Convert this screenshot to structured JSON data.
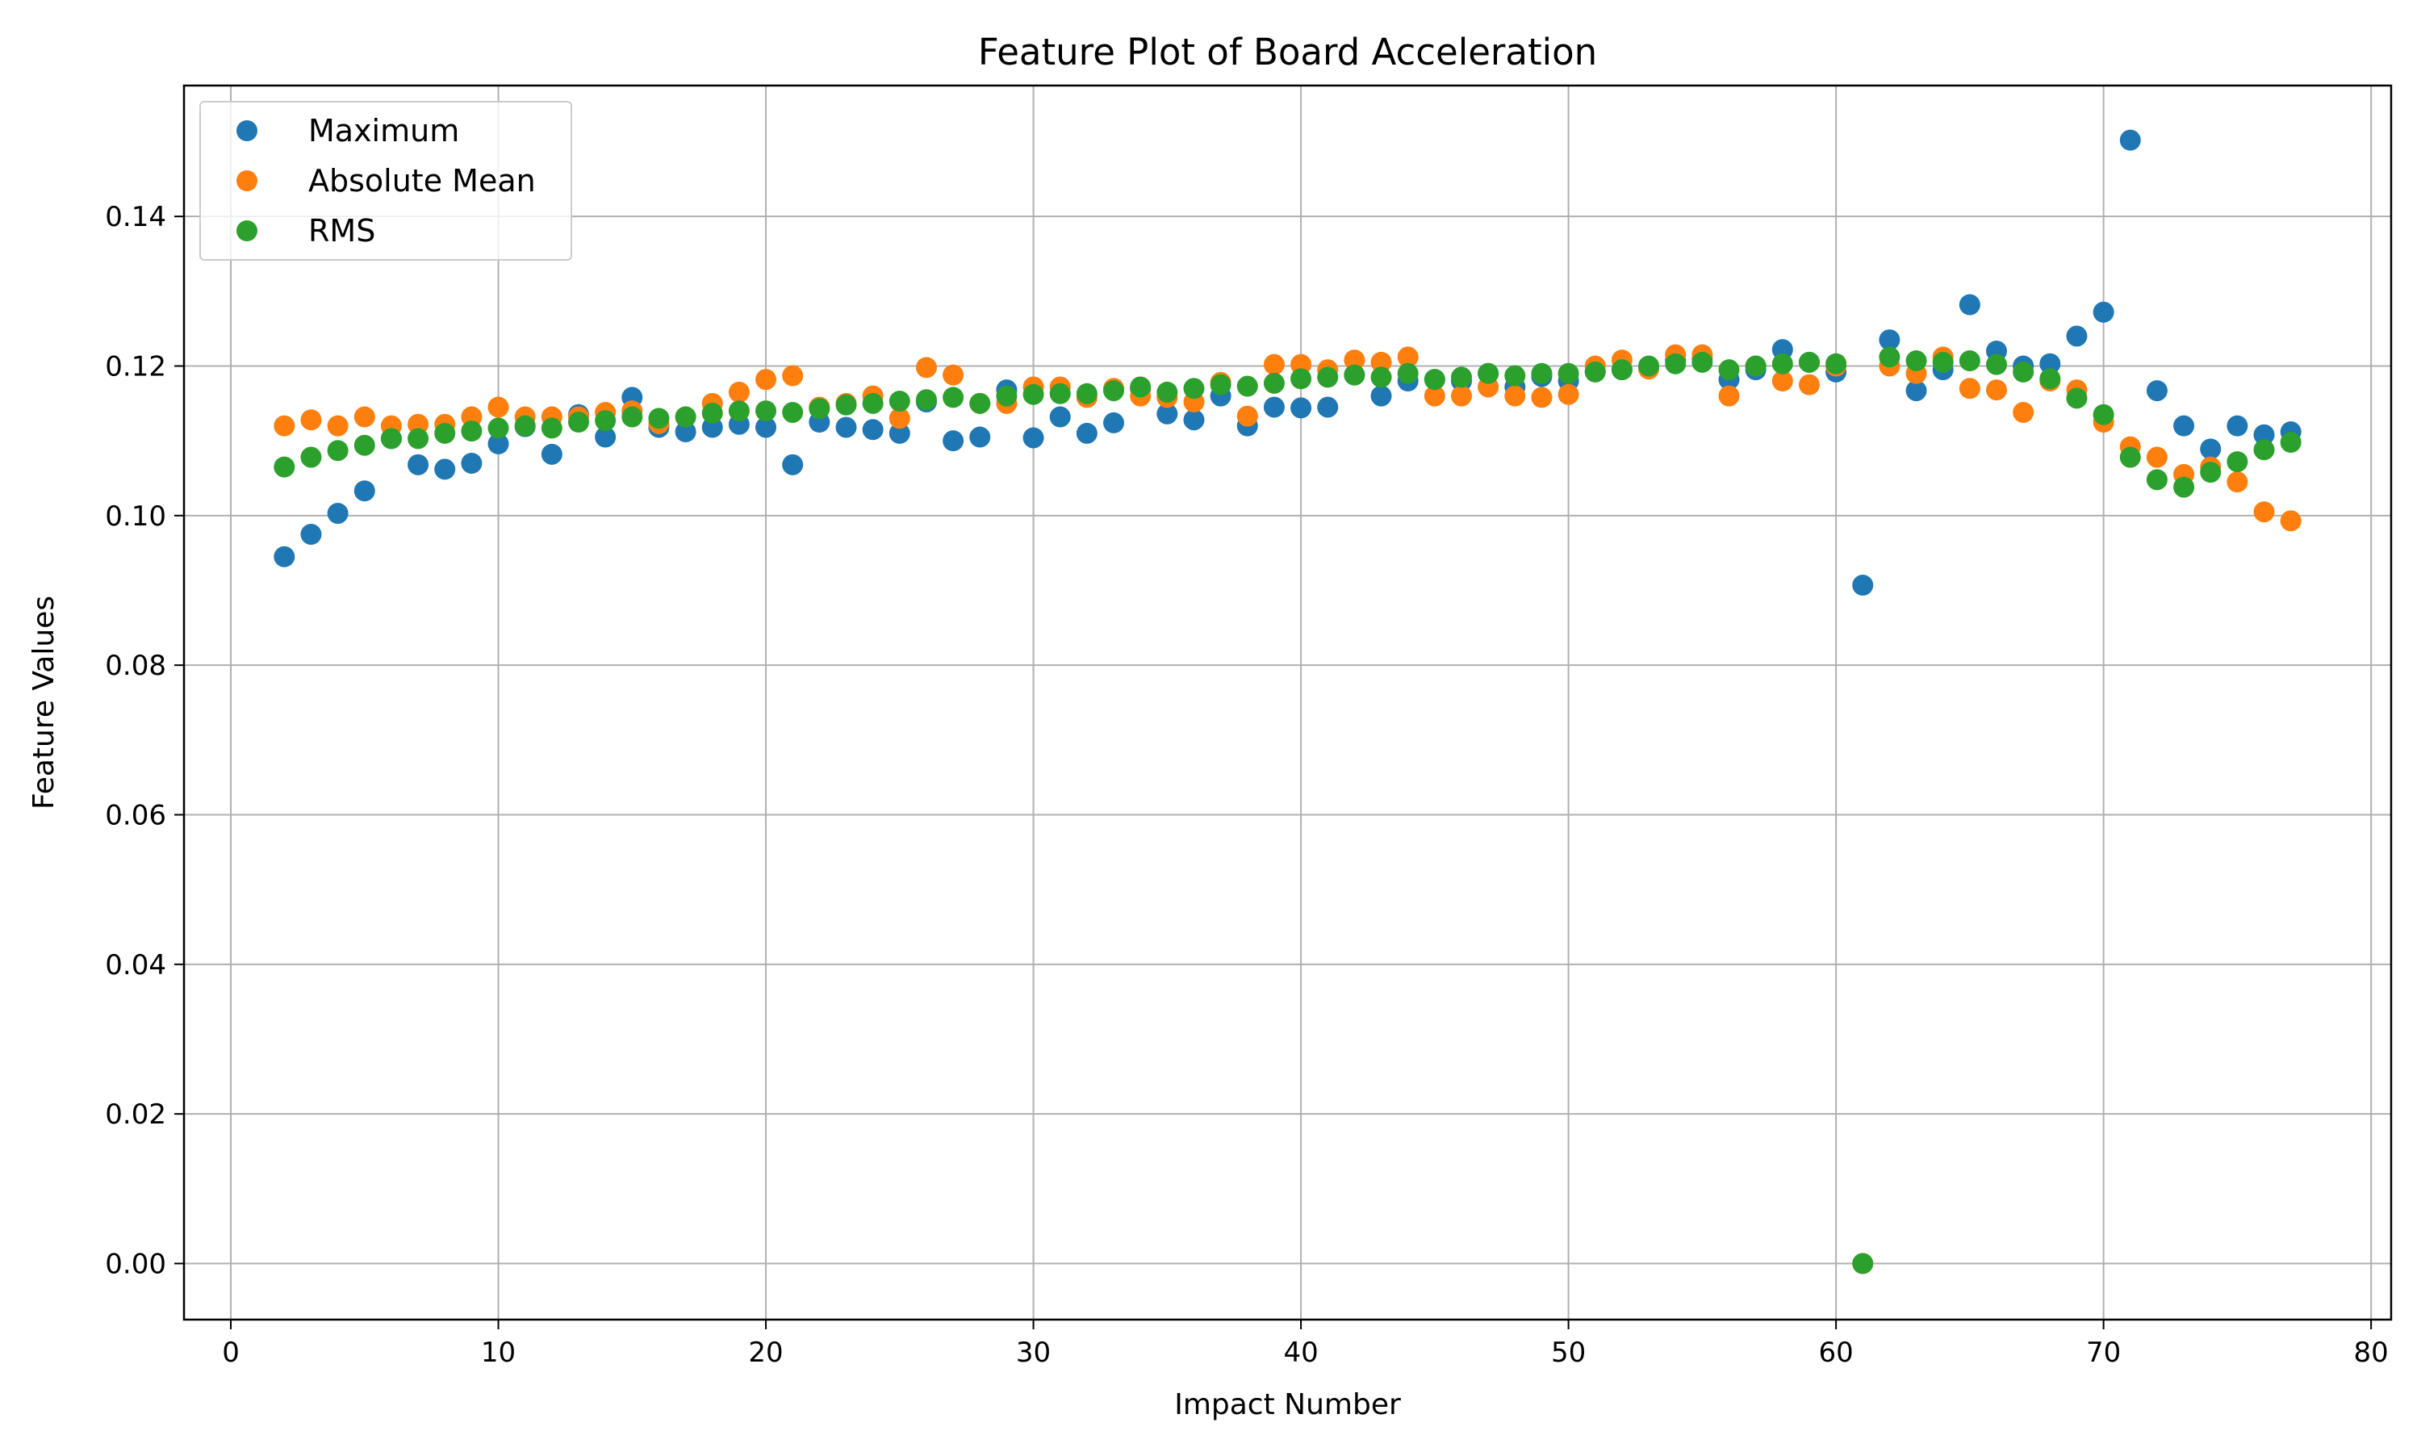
{
  "chart_data": {
    "type": "scatter",
    "title": "Feature Plot of Board Acceleration",
    "xlabel": "Impact Number",
    "ylabel": "Feature Values",
    "xlim": [
      -1.75,
      80.75
    ],
    "ylim": [
      -0.0075,
      0.1575
    ],
    "xticks": [
      0,
      10,
      20,
      30,
      40,
      50,
      60,
      70,
      80
    ],
    "yticks": [
      0.0,
      0.02,
      0.04,
      0.06,
      0.08,
      0.1,
      0.12,
      0.14
    ],
    "ytick_labels": [
      "0.00",
      "0.02",
      "0.04",
      "0.06",
      "0.08",
      "0.10",
      "0.12",
      "0.14"
    ],
    "grid": true,
    "legend_position": "top-left",
    "x": [
      2,
      3,
      4,
      5,
      6,
      7,
      8,
      9,
      10,
      11,
      12,
      13,
      14,
      15,
      16,
      17,
      18,
      19,
      20,
      21,
      22,
      23,
      24,
      25,
      26,
      27,
      28,
      29,
      30,
      31,
      32,
      33,
      34,
      35,
      36,
      37,
      38,
      39,
      40,
      41,
      42,
      43,
      44,
      45,
      46,
      47,
      48,
      49,
      50,
      51,
      52,
      53,
      54,
      55,
      56,
      57,
      58,
      59,
      60,
      61,
      62,
      63,
      64,
      65,
      66,
      67,
      68,
      69,
      70,
      71,
      72,
      73,
      74,
      75,
      76,
      77
    ],
    "series": [
      {
        "name": "Maximum",
        "color": "#1f77b4",
        "values": [
          0.0945,
          0.0975,
          0.1003,
          0.1033,
          0.1103,
          0.1068,
          0.1062,
          0.107,
          0.1096,
          0.1119,
          0.1082,
          0.1135,
          0.1105,
          0.1158,
          0.1118,
          0.1112,
          0.1118,
          0.1122,
          0.1118,
          0.1068,
          0.1125,
          0.1118,
          0.1115,
          0.111,
          0.1152,
          0.11,
          0.1105,
          0.1168,
          0.1104,
          0.1132,
          0.111,
          0.1124,
          0.117,
          0.1136,
          0.1128,
          0.116,
          0.112,
          0.1145,
          0.1144,
          0.1145,
          0.1188,
          0.116,
          0.118,
          0.1182,
          0.118,
          0.119,
          0.1172,
          0.1186,
          0.118,
          0.1193,
          0.1195,
          0.1198,
          0.1208,
          0.121,
          0.1182,
          0.1195,
          0.1222,
          0.1205,
          0.1192,
          0.0907,
          0.1235,
          0.1167,
          0.1195,
          0.1282,
          0.122,
          0.12,
          0.1203,
          0.124,
          0.1272,
          0.1502,
          0.1167,
          0.112,
          0.1089,
          0.112,
          0.1108,
          0.1112
        ]
      },
      {
        "name": "Absolute Mean",
        "color": "#ff7f0e",
        "values": [
          0.112,
          0.1128,
          0.112,
          0.1132,
          0.112,
          0.1122,
          0.1122,
          0.1132,
          0.1145,
          0.1132,
          0.1132,
          0.1132,
          0.1138,
          0.114,
          0.1123,
          0.1132,
          0.115,
          0.1165,
          0.1182,
          0.1187,
          0.1145,
          0.115,
          0.116,
          0.113,
          0.1198,
          0.1188,
          0.115,
          0.115,
          0.1172,
          0.1172,
          0.1158,
          0.117,
          0.116,
          0.1158,
          0.1152,
          0.1178,
          0.1133,
          0.1202,
          0.1202,
          0.1195,
          0.1208,
          0.1205,
          0.1212,
          0.116,
          0.116,
          0.1172,
          0.116,
          0.1158,
          0.1162,
          0.12,
          0.1208,
          0.1196,
          0.1215,
          0.1215,
          0.116,
          0.12,
          0.118,
          0.1175,
          0.12,
          0.0,
          0.12,
          0.119,
          0.1212,
          0.117,
          0.1168,
          0.1138,
          0.118,
          0.1168,
          0.1125,
          0.1092,
          0.1078,
          0.1055,
          0.1065,
          0.1045,
          0.1005,
          0.0993
        ]
      },
      {
        "name": "RMS",
        "color": "#2ca02c",
        "values": [
          0.1065,
          0.1078,
          0.1087,
          0.1094,
          0.1103,
          0.1103,
          0.111,
          0.1113,
          0.1117,
          0.112,
          0.1117,
          0.1125,
          0.1127,
          0.1132,
          0.113,
          0.1132,
          0.1137,
          0.114,
          0.114,
          0.1138,
          0.1143,
          0.1148,
          0.115,
          0.1153,
          0.1155,
          0.1158,
          0.115,
          0.116,
          0.1162,
          0.1163,
          0.1163,
          0.1167,
          0.1172,
          0.1165,
          0.117,
          0.1175,
          0.1173,
          0.1177,
          0.1183,
          0.1185,
          0.1188,
          0.1185,
          0.119,
          0.1182,
          0.1185,
          0.119,
          0.1187,
          0.119,
          0.119,
          0.1192,
          0.1195,
          0.12,
          0.1203,
          0.1205,
          0.1195,
          0.12,
          0.1203,
          0.1205,
          0.1203,
          0.0,
          0.1212,
          0.1207,
          0.1205,
          0.1207,
          0.1202,
          0.1192,
          0.1183,
          0.1157,
          0.1135,
          0.1078,
          0.1048,
          0.1038,
          0.1058,
          0.1072,
          0.1088,
          0.1098
        ]
      }
    ]
  }
}
